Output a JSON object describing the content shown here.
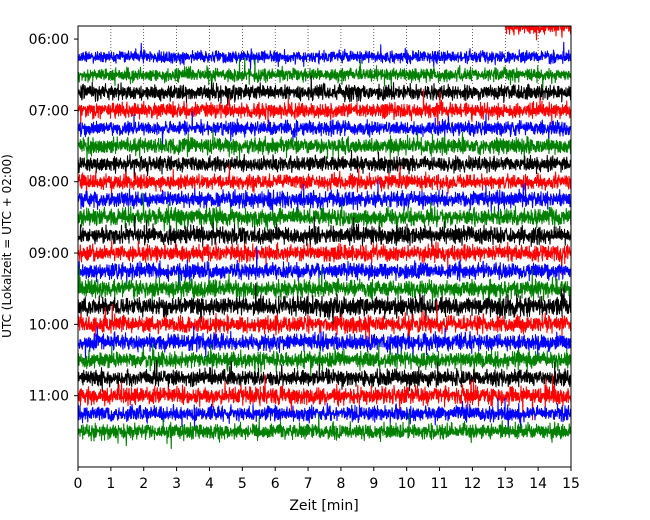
{
  "chart_data": {
    "type": "line",
    "title": "",
    "xlabel": "Zeit  [min]",
    "ylabel": "UTC (Lokalzeit = UTC + 02:00)",
    "xlim": [
      0,
      15
    ],
    "x_ticks": [
      "0",
      "1",
      "2",
      "3",
      "4",
      "5",
      "6",
      "7",
      "8",
      "9",
      "10",
      "11",
      "12",
      "13",
      "14",
      "15"
    ],
    "y_tick_labels": [
      "06:00",
      "07:00",
      "08:00",
      "09:00",
      "10:00",
      "11:00"
    ],
    "y_range_utc": [
      "05:49",
      "12:00"
    ],
    "trace_interval_minutes": 15,
    "trace_colors": [
      "#0000ff",
      "#008000",
      "#000000",
      "#ff0000"
    ],
    "grid": "dotted vertical lines in the top region",
    "traces": [
      {
        "start_utc": "06:15",
        "color": "#0000ff",
        "amplitude": 1.1
      },
      {
        "start_utc": "06:30",
        "color": "#008000",
        "amplitude": 1.2
      },
      {
        "start_utc": "06:45",
        "color": "#000000",
        "amplitude": 1.4
      },
      {
        "start_utc": "07:00",
        "color": "#ff0000",
        "amplitude": 1.4
      },
      {
        "start_utc": "07:15",
        "color": "#0000ff",
        "amplitude": 1.3
      },
      {
        "start_utc": "07:30",
        "color": "#008000",
        "amplitude": 1.5
      },
      {
        "start_utc": "07:45",
        "color": "#000000",
        "amplitude": 1.4
      },
      {
        "start_utc": "08:00",
        "color": "#ff0000",
        "amplitude": 1.4
      },
      {
        "start_utc": "08:15",
        "color": "#0000ff",
        "amplitude": 1.5
      },
      {
        "start_utc": "08:30",
        "color": "#008000",
        "amplitude": 1.6
      },
      {
        "start_utc": "08:45",
        "color": "#000000",
        "amplitude": 1.6
      },
      {
        "start_utc": "09:00",
        "color": "#ff0000",
        "amplitude": 1.5
      },
      {
        "start_utc": "09:15",
        "color": "#0000ff",
        "amplitude": 1.5
      },
      {
        "start_utc": "09:30",
        "color": "#008000",
        "amplitude": 1.6
      },
      {
        "start_utc": "09:45",
        "color": "#000000",
        "amplitude": 1.8
      },
      {
        "start_utc": "10:00",
        "color": "#ff0000",
        "amplitude": 1.6
      },
      {
        "start_utc": "10:15",
        "color": "#0000ff",
        "amplitude": 1.5
      },
      {
        "start_utc": "10:30",
        "color": "#008000",
        "amplitude": 1.5
      },
      {
        "start_utc": "10:45",
        "color": "#000000",
        "amplitude": 1.5
      },
      {
        "start_utc": "11:00",
        "color": "#ff0000",
        "amplitude": 1.6
      },
      {
        "start_utc": "11:15",
        "color": "#0000ff",
        "amplitude": 1.4
      },
      {
        "start_utc": "11:30",
        "color": "#008000",
        "amplitude": 1.4
      },
      {
        "start_utc": "05:50",
        "color": "#ff0000",
        "amplitude": 1.2,
        "x_start_min": 13.0,
        "x_end_min": 15.0
      }
    ]
  }
}
